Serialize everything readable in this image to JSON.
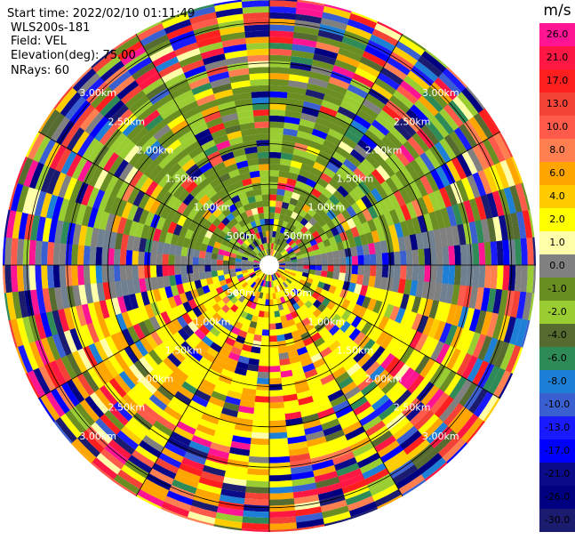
{
  "info": {
    "start_time": "Start time: 2022/02/10 01:11:49",
    "instrument": "WLS200s-181",
    "field": "Field: VEL",
    "elevation": "Elevation(deg): 75.00",
    "nrays": "NRays: 60"
  },
  "chart_data": {
    "type": "heatmap",
    "projection": "polar",
    "n_rays": 60,
    "range_rings_km": [
      0.5,
      1.0,
      1.5,
      2.0,
      2.5,
      3.0
    ],
    "max_range_km": 3.3,
    "min_range_km": 0.05,
    "ring_labels": [
      "500m",
      "1.00km",
      "1.50km",
      "2.00km",
      "2.50km",
      "3.00km"
    ],
    "field_units": "m/s",
    "colorbar": {
      "unit_label": "m/s",
      "tick_labels": [
        "26.0",
        "21.0",
        "17.0",
        "13.0",
        "10.0",
        "8.0",
        "6.0",
        "4.0",
        "2.0",
        "1.0",
        "0.0",
        "-1.0",
        "-2.0",
        "-4.0",
        "-6.0",
        "-8.0",
        "-10.0",
        "-13.0",
        "-17.0",
        "-21.0",
        "-26.0",
        "-30.0"
      ],
      "colors": [
        "#ff1493",
        "#ff1744",
        "#ff1f1f",
        "#f44336",
        "#ff5a4a",
        "#ff7f50",
        "#ffa500",
        "#ffcc00",
        "#ffff00",
        "#ffffaa",
        "#808080",
        "#6b8e23",
        "#9acd32",
        "#556b2f",
        "#2e8b57",
        "#1e7fd6",
        "#3a5fd0",
        "#1a1aff",
        "#0000ff",
        "#0b0b8a",
        "#000080",
        "#1b1b70"
      ]
    },
    "legend_position": "right",
    "grid": true
  }
}
